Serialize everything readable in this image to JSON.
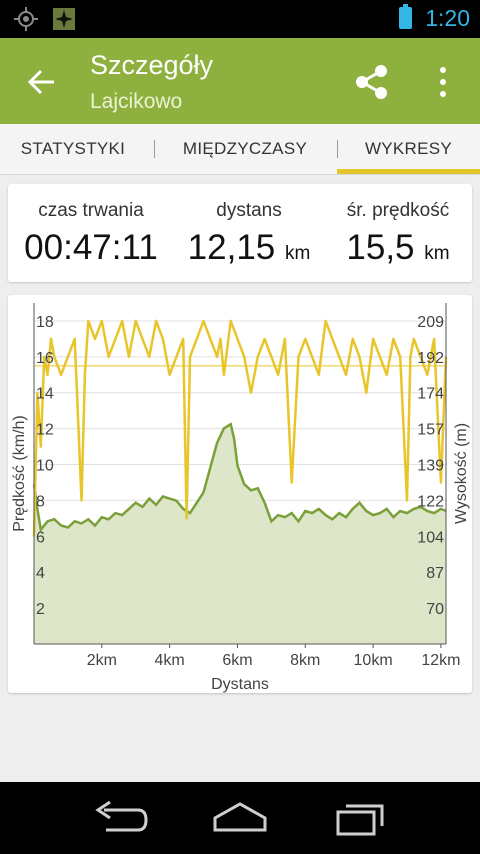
{
  "status_bar": {
    "time": "1:20"
  },
  "action_bar": {
    "title": "Szczegóły",
    "subtitle": "Lajcikowo"
  },
  "tabs": [
    {
      "label": "STATYSTYKI"
    },
    {
      "label": "MIĘDZYCZASY"
    },
    {
      "label": "WYKRESY",
      "selected": true
    }
  ],
  "stats": [
    {
      "label": "czas trwania",
      "value": "00:47:11",
      "unit": ""
    },
    {
      "label": "dystans",
      "value": "12,15",
      "unit": "km"
    },
    {
      "label": "śr. prędkość",
      "value": "15,5",
      "unit": "km"
    }
  ],
  "chart_data": {
    "type": "line",
    "xlabel": "Dystans",
    "ylabel_left": "Prędkość (km/h)",
    "ylabel_right": "Wysokość (m)",
    "x_ticks": [
      "2km",
      "4km",
      "6km",
      "8km",
      "10km",
      "12km"
    ],
    "y_left_ticks": [
      "2",
      "4",
      "6",
      "8",
      "10",
      "12",
      "14",
      "16",
      "18"
    ],
    "y_right_ticks": [
      "70",
      "87",
      "104",
      "122",
      "139",
      "157",
      "174",
      "192",
      "209"
    ],
    "xlim": [
      0,
      12.15
    ],
    "ylim_left": [
      0,
      19
    ],
    "average_speed": 15.5,
    "series": [
      {
        "axis": "left",
        "color": "#e8c52a",
        "x": [
          0,
          0.1,
          0.2,
          0.3,
          0.4,
          0.5,
          0.6,
          0.8,
          1.0,
          1.2,
          1.4,
          1.5,
          1.6,
          1.8,
          2.0,
          2.2,
          2.4,
          2.6,
          2.8,
          3.0,
          3.2,
          3.4,
          3.6,
          3.8,
          4.0,
          4.2,
          4.4,
          4.5,
          4.6,
          4.8,
          5.0,
          5.2,
          5.4,
          5.5,
          5.6,
          5.8,
          6.0,
          6.2,
          6.4,
          6.6,
          6.8,
          7.0,
          7.2,
          7.4,
          7.6,
          7.8,
          8.0,
          8.2,
          8.4,
          8.6,
          8.8,
          9.0,
          9.2,
          9.4,
          9.6,
          9.8,
          10.0,
          10.2,
          10.4,
          10.6,
          10.8,
          11.0,
          11.1,
          11.2,
          11.4,
          11.6,
          11.8,
          12.0,
          12.15
        ],
        "values": [
          6,
          14,
          11,
          16,
          15,
          17,
          16,
          15,
          16,
          17,
          8,
          15,
          18,
          17,
          18,
          16,
          17,
          18,
          16,
          18,
          17,
          16,
          18,
          17,
          15,
          16,
          17,
          7,
          16,
          17,
          18,
          17,
          16,
          17,
          15,
          18,
          17,
          16,
          14,
          16,
          17,
          16,
          15,
          17,
          9,
          16,
          17,
          16,
          15,
          18,
          17,
          16,
          15,
          17,
          16,
          14,
          17,
          16,
          15,
          17,
          16,
          8,
          16,
          17,
          16,
          15,
          17,
          9,
          16
        ]
      },
      {
        "axis": "right",
        "color": "#7aa03a",
        "fill": "#dde6c8",
        "x": [
          0,
          0.1,
          0.2,
          0.4,
          0.6,
          0.8,
          1.0,
          1.2,
          1.4,
          1.6,
          1.8,
          2.0,
          2.2,
          2.4,
          2.6,
          2.8,
          3.0,
          3.2,
          3.4,
          3.6,
          3.8,
          4.0,
          4.2,
          4.4,
          4.6,
          4.8,
          5.0,
          5.2,
          5.4,
          5.6,
          5.8,
          5.9,
          6.0,
          6.2,
          6.4,
          6.6,
          6.8,
          7.0,
          7.2,
          7.4,
          7.6,
          7.8,
          8.0,
          8.2,
          8.4,
          8.6,
          8.8,
          9.0,
          9.2,
          9.4,
          9.6,
          9.8,
          10.0,
          10.2,
          10.4,
          10.6,
          10.8,
          11.0,
          11.2,
          11.4,
          11.6,
          11.8,
          12.0,
          12.15
        ],
        "values": [
          130,
          118,
          108,
          112,
          113,
          110,
          109,
          112,
          111,
          113,
          110,
          114,
          113,
          116,
          115,
          118,
          121,
          119,
          123,
          120,
          124,
          123,
          122,
          118,
          116,
          121,
          126,
          138,
          150,
          157,
          159,
          152,
          139,
          130,
          127,
          128,
          121,
          112,
          115,
          114,
          116,
          112,
          117,
          116,
          118,
          115,
          113,
          116,
          114,
          118,
          121,
          117,
          115,
          116,
          118,
          114,
          117,
          116,
          118,
          119,
          117,
          116,
          118,
          117
        ]
      }
    ]
  }
}
